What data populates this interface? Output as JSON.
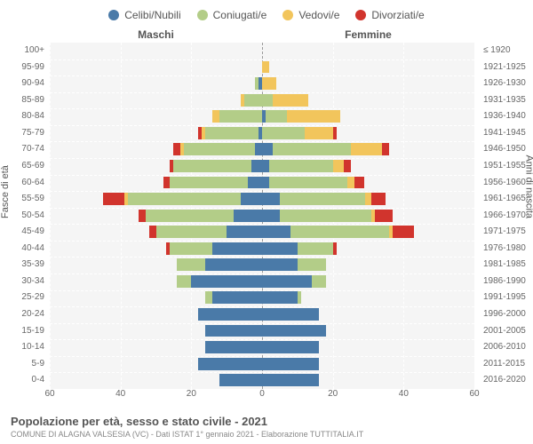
{
  "type": "population-pyramid",
  "legend": [
    {
      "label": "Celibi/Nubili",
      "color": "#4a7aa8"
    },
    {
      "label": "Coniugati/e",
      "color": "#b3cd88"
    },
    {
      "label": "Vedovi/e",
      "color": "#f2c55c"
    },
    {
      "label": "Divorziati/e",
      "color": "#d1342d"
    }
  ],
  "headers": {
    "male": "Maschi",
    "female": "Femmine",
    "right_top": "≤ 1920"
  },
  "axis_labels": {
    "left": "Fasce di età",
    "right": "Anni di nascita"
  },
  "x_axis": {
    "max": 60,
    "ticks": [
      60,
      40,
      20,
      0,
      20,
      40,
      60
    ]
  },
  "rows": [
    {
      "age": "100+",
      "year": "≤ 1920",
      "male": [
        0,
        0,
        0,
        0
      ],
      "female": [
        0,
        0,
        0,
        0
      ]
    },
    {
      "age": "95-99",
      "year": "1921-1925",
      "male": [
        0,
        0,
        0,
        0
      ],
      "female": [
        0,
        0,
        2,
        0
      ]
    },
    {
      "age": "90-94",
      "year": "1926-1930",
      "male": [
        1,
        1,
        0,
        0
      ],
      "female": [
        0,
        0,
        4,
        0
      ]
    },
    {
      "age": "85-89",
      "year": "1931-1935",
      "male": [
        0,
        5,
        1,
        0
      ],
      "female": [
        0,
        3,
        10,
        0
      ]
    },
    {
      "age": "80-84",
      "year": "1936-1940",
      "male": [
        0,
        12,
        2,
        0
      ],
      "female": [
        1,
        6,
        15,
        0
      ]
    },
    {
      "age": "75-79",
      "year": "1941-1945",
      "male": [
        1,
        15,
        1,
        1
      ],
      "female": [
        0,
        12,
        8,
        1
      ]
    },
    {
      "age": "70-74",
      "year": "1946-1950",
      "male": [
        2,
        20,
        1,
        2
      ],
      "female": [
        3,
        22,
        9,
        2
      ]
    },
    {
      "age": "65-69",
      "year": "1951-1955",
      "male": [
        3,
        22,
        0,
        1
      ],
      "female": [
        2,
        18,
        3,
        2
      ]
    },
    {
      "age": "60-64",
      "year": "1956-1960",
      "male": [
        4,
        22,
        0,
        2
      ],
      "female": [
        2,
        22,
        2,
        3
      ]
    },
    {
      "age": "55-59",
      "year": "1961-1965",
      "male": [
        6,
        32,
        1,
        6
      ],
      "female": [
        5,
        24,
        2,
        4
      ]
    },
    {
      "age": "50-54",
      "year": "1966-1970",
      "male": [
        8,
        25,
        0,
        2
      ],
      "female": [
        5,
        26,
        1,
        5
      ]
    },
    {
      "age": "45-49",
      "year": "1971-1975",
      "male": [
        10,
        20,
        0,
        2
      ],
      "female": [
        8,
        28,
        1,
        6
      ]
    },
    {
      "age": "40-44",
      "year": "1976-1980",
      "male": [
        14,
        12,
        0,
        1
      ],
      "female": [
        10,
        10,
        0,
        1
      ]
    },
    {
      "age": "35-39",
      "year": "1981-1985",
      "male": [
        16,
        8,
        0,
        0
      ],
      "female": [
        10,
        8,
        0,
        0
      ]
    },
    {
      "age": "30-34",
      "year": "1986-1990",
      "male": [
        20,
        4,
        0,
        0
      ],
      "female": [
        14,
        4,
        0,
        0
      ]
    },
    {
      "age": "25-29",
      "year": "1991-1995",
      "male": [
        14,
        2,
        0,
        0
      ],
      "female": [
        10,
        1,
        0,
        0
      ]
    },
    {
      "age": "20-24",
      "year": "1996-2000",
      "male": [
        18,
        0,
        0,
        0
      ],
      "female": [
        16,
        0,
        0,
        0
      ]
    },
    {
      "age": "15-19",
      "year": "2001-2005",
      "male": [
        16,
        0,
        0,
        0
      ],
      "female": [
        18,
        0,
        0,
        0
      ]
    },
    {
      "age": "10-14",
      "year": "2006-2010",
      "male": [
        16,
        0,
        0,
        0
      ],
      "female": [
        16,
        0,
        0,
        0
      ]
    },
    {
      "age": "5-9",
      "year": "2011-2015",
      "male": [
        18,
        0,
        0,
        0
      ],
      "female": [
        16,
        0,
        0,
        0
      ]
    },
    {
      "age": "0-4",
      "year": "2016-2020",
      "male": [
        12,
        0,
        0,
        0
      ],
      "female": [
        16,
        0,
        0,
        0
      ]
    }
  ],
  "colors": {
    "background": "#f5f5f5",
    "grid": "#ffffff",
    "center": "#999999",
    "text": "#666666"
  },
  "footer": {
    "title": "Popolazione per età, sesso e stato civile - 2021",
    "subtitle": "COMUNE DI ALAGNA VALSESIA (VC) - Dati ISTAT 1° gennaio 2021 - Elaborazione TUTTITALIA.IT"
  }
}
